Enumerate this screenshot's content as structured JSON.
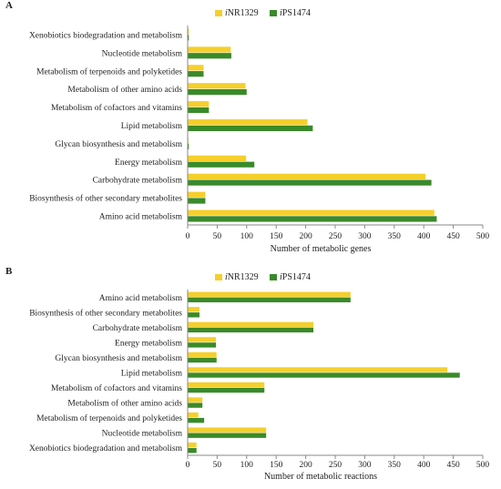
{
  "chart_data": [
    {
      "panel": "A",
      "type": "bar",
      "orientation": "horizontal",
      "categories": [
        "Xenobiotics biodegradation and metabolism",
        "Nucleotide metabolism",
        "Metabolism of terpenoids and polyketides",
        "Metabolism of other amino acids",
        "Metabolism of cofactors and vitamins",
        "Lipid metabolism",
        "Glycan biosynthesis and metabolism",
        "Energy metabolism",
        "Carbohydrate metabolism",
        "Biosynthesis of other secondary metabolites",
        "Amino acid metabolism"
      ],
      "series": [
        {
          "name_prefix": "i",
          "name_rest": "NR1329",
          "color": "#f5cf2b",
          "values": [
            2,
            73,
            27,
            98,
            36,
            203,
            1,
            99,
            403,
            30,
            418
          ]
        },
        {
          "name_prefix": "i",
          "name_rest": "PS1474",
          "color": "#3a8a2a",
          "values": [
            2,
            74,
            27,
            100,
            36,
            212,
            2,
            113,
            413,
            30,
            422
          ]
        }
      ],
      "xlabel": "Number of metabolic genes",
      "xlim": [
        0,
        500
      ],
      "xticks": [
        0,
        50,
        100,
        150,
        200,
        250,
        300,
        350,
        400,
        450,
        500
      ],
      "legend": "top-right",
      "grid": false
    },
    {
      "panel": "B",
      "type": "bar",
      "orientation": "horizontal",
      "categories": [
        "Amino acid metabolism",
        "Biosynthesis of other secondary metabolites",
        "Carbohydrate metabolism",
        "Energy metabolism",
        "Glycan biosynthesis and metabolism",
        "Lipid metabolism",
        "Metabolism of cofactors and vitamins",
        "Metabolism of other amino acids",
        "Metabolism of terpenoids and polyketides",
        "Nucleotide metabolism",
        "Xenobiotics biodegradation and metabolism"
      ],
      "series": [
        {
          "name_prefix": "i",
          "name_rest": "NR1329",
          "color": "#f5cf2b",
          "values": [
            276,
            20,
            213,
            48,
            49,
            440,
            130,
            25,
            18,
            133,
            15
          ]
        },
        {
          "name_prefix": "i",
          "name_rest": "PS1474",
          "color": "#3a8a2a",
          "values": [
            276,
            20,
            213,
            48,
            49,
            461,
            130,
            25,
            28,
            133,
            15
          ]
        }
      ],
      "xlabel": "Number of metabolic reactions",
      "xlim": [
        0,
        500
      ],
      "xticks": [
        0,
        50,
        100,
        150,
        200,
        250,
        300,
        350,
        400,
        450,
        500
      ],
      "legend": "top-center",
      "grid": false
    }
  ]
}
